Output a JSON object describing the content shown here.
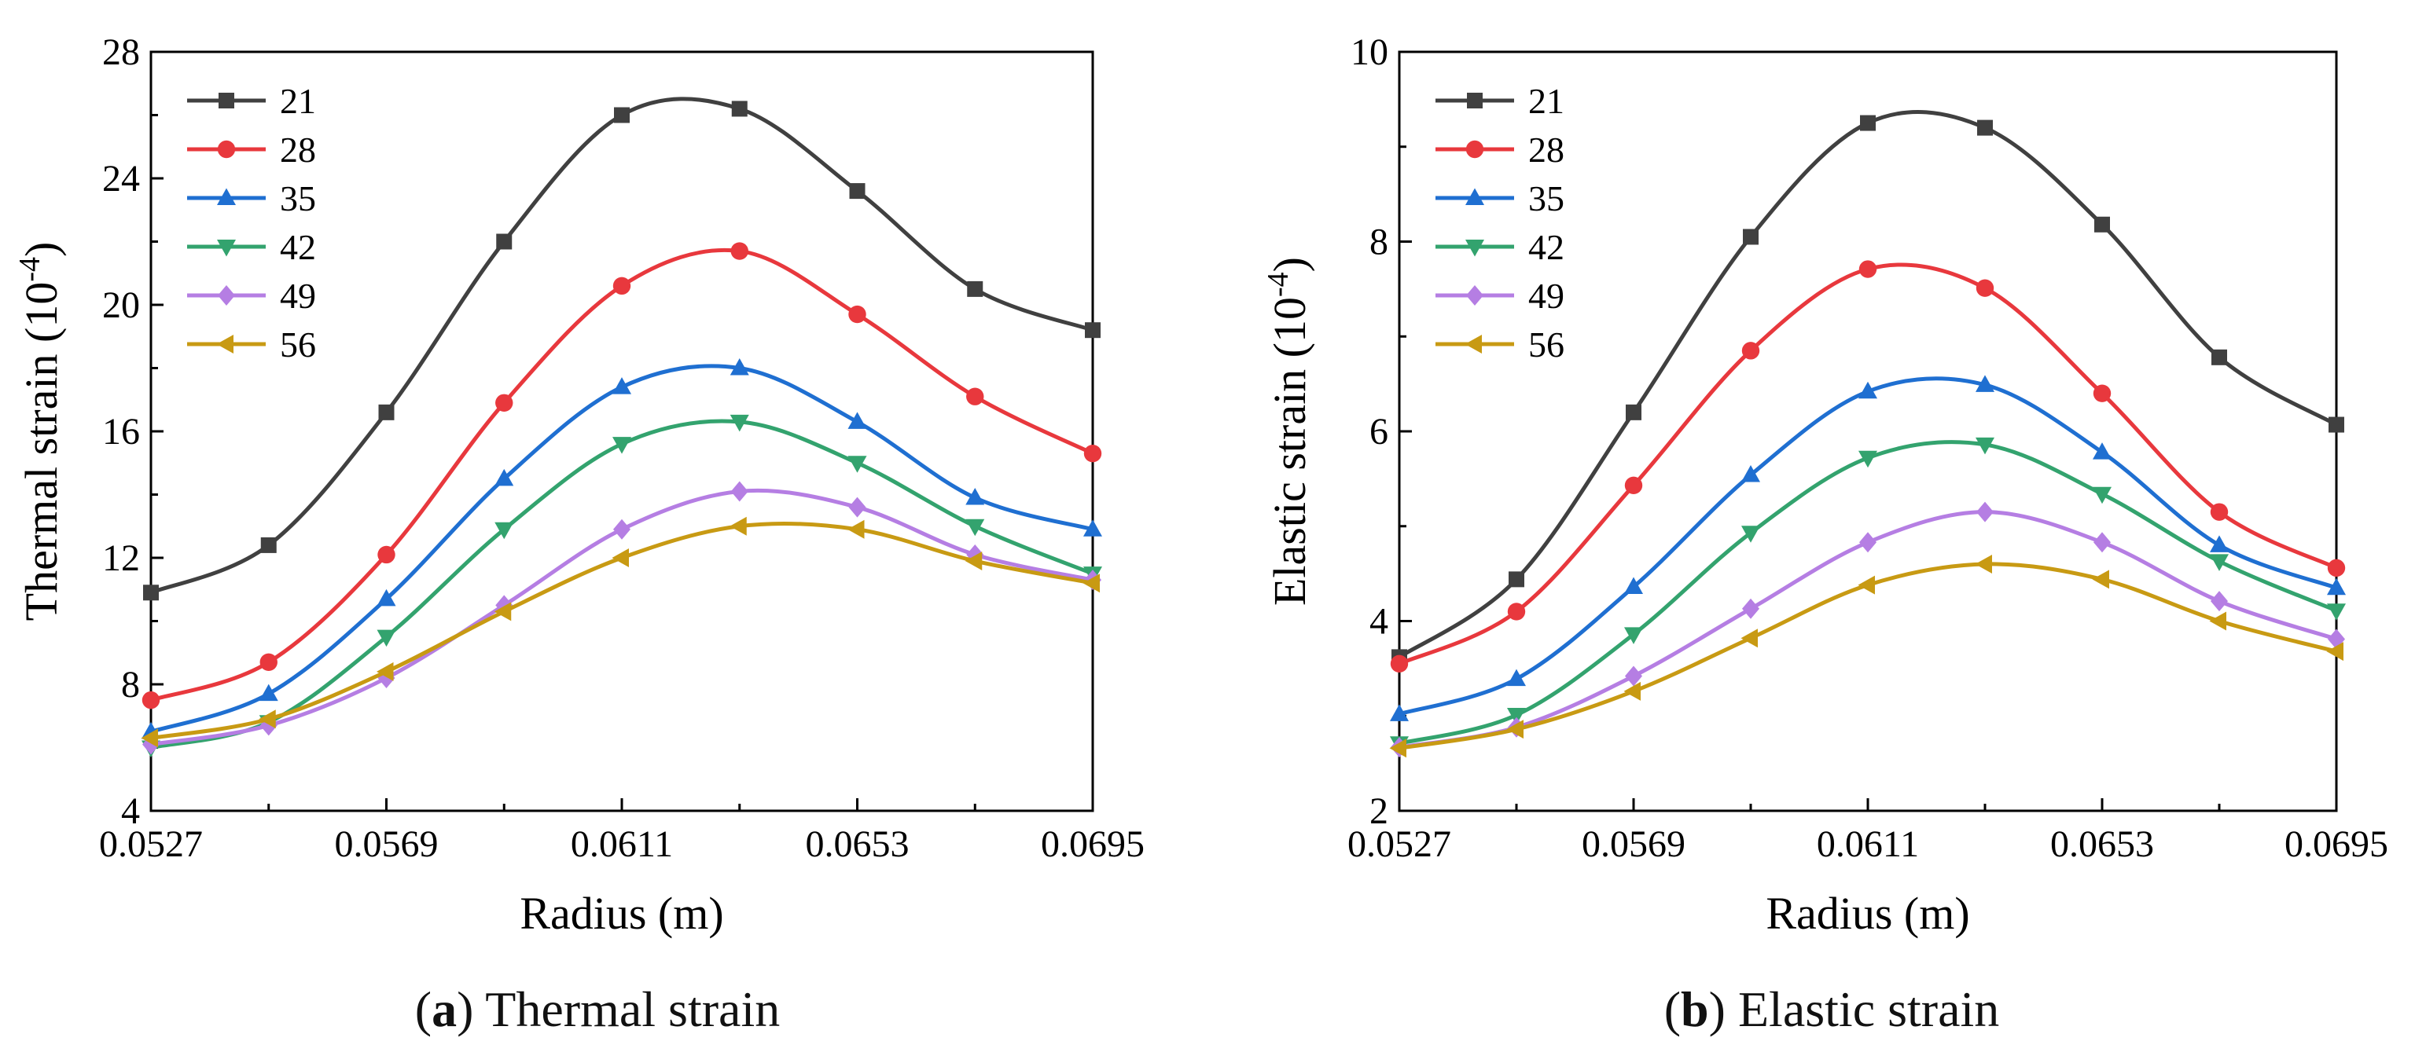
{
  "chart_data": [
    {
      "type": "line",
      "panel_letter": "a",
      "caption": "Thermal strain",
      "xlabel": "Radius (m)",
      "ylabel": "Thermal strain (10",
      "ylabel_exp": "-4",
      "ylabel_close": ")",
      "xlim": [
        0.0527,
        0.0695
      ],
      "ylim": [
        4,
        28
      ],
      "xticks": [
        "0.0527",
        "0.0569",
        "0.0611",
        "0.0653",
        "0.0695"
      ],
      "yticks": [
        "4",
        "8",
        "12",
        "16",
        "20",
        "24",
        "28"
      ],
      "legend_position": "top-left",
      "grid": false,
      "x": [
        0.0527,
        0.0548,
        0.0569,
        0.059,
        0.0611,
        0.0632,
        0.0653,
        0.0674,
        0.0695
      ],
      "series": [
        {
          "name": "21",
          "color": "#404040",
          "marker": "square",
          "values": [
            10.9,
            12.4,
            16.6,
            22.0,
            26.0,
            26.2,
            23.6,
            20.5,
            19.2
          ]
        },
        {
          "name": "28",
          "color": "#e8383d",
          "marker": "circle",
          "values": [
            7.5,
            8.7,
            12.1,
            16.9,
            20.6,
            21.7,
            19.7,
            17.1,
            15.3
          ]
        },
        {
          "name": "35",
          "color": "#1f6fd1",
          "marker": "triangle-up",
          "values": [
            6.5,
            7.7,
            10.7,
            14.5,
            17.4,
            18.0,
            16.3,
            13.9,
            12.9
          ]
        },
        {
          "name": "42",
          "color": "#33a36e",
          "marker": "triangle-down",
          "values": [
            6.0,
            6.8,
            9.5,
            12.9,
            15.6,
            16.3,
            15.0,
            13.0,
            11.5
          ]
        },
        {
          "name": "49",
          "color": "#b57ee3",
          "marker": "diamond",
          "values": [
            6.1,
            6.7,
            8.2,
            10.5,
            12.9,
            14.1,
            13.6,
            12.1,
            11.3
          ]
        },
        {
          "name": "56",
          "color": "#c89a13",
          "marker": "triangle-left",
          "values": [
            6.3,
            6.9,
            8.4,
            10.3,
            12.0,
            13.0,
            12.9,
            11.9,
            11.2
          ]
        }
      ]
    },
    {
      "type": "line",
      "panel_letter": "b",
      "caption": "Elastic strain",
      "xlabel": "Radius (m)",
      "ylabel": "Elastic strain (10",
      "ylabel_exp": "-4",
      "ylabel_close": ")",
      "xlim": [
        0.0527,
        0.0695
      ],
      "ylim": [
        2,
        10
      ],
      "xticks": [
        "0.0527",
        "0.0569",
        "0.0611",
        "0.0653",
        "0.0695"
      ],
      "yticks": [
        "2",
        "4",
        "6",
        "8",
        "10"
      ],
      "legend_position": "top-left",
      "grid": false,
      "x": [
        0.0527,
        0.0548,
        0.0569,
        0.059,
        0.0611,
        0.0632,
        0.0653,
        0.0674,
        0.0695
      ],
      "series": [
        {
          "name": "21",
          "color": "#404040",
          "marker": "square",
          "values": [
            3.62,
            4.44,
            6.2,
            8.05,
            9.25,
            9.2,
            8.18,
            6.78,
            6.07
          ]
        },
        {
          "name": "28",
          "color": "#e8383d",
          "marker": "circle",
          "values": [
            3.55,
            4.1,
            5.43,
            6.85,
            7.71,
            7.51,
            6.4,
            5.15,
            4.56
          ]
        },
        {
          "name": "35",
          "color": "#1f6fd1",
          "marker": "triangle-up",
          "values": [
            3.02,
            3.39,
            4.36,
            5.54,
            6.42,
            6.49,
            5.78,
            4.8,
            4.35
          ]
        },
        {
          "name": "42",
          "color": "#33a36e",
          "marker": "triangle-down",
          "values": [
            2.71,
            3.01,
            3.86,
            4.93,
            5.72,
            5.86,
            5.34,
            4.63,
            4.11
          ]
        },
        {
          "name": "49",
          "color": "#b57ee3",
          "marker": "diamond",
          "values": [
            2.67,
            2.88,
            3.42,
            4.13,
            4.83,
            5.15,
            4.83,
            4.21,
            3.81
          ]
        },
        {
          "name": "56",
          "color": "#c89a13",
          "marker": "triangle-left",
          "values": [
            2.66,
            2.86,
            3.26,
            3.82,
            4.38,
            4.6,
            4.44,
            4.0,
            3.68
          ]
        }
      ]
    }
  ]
}
